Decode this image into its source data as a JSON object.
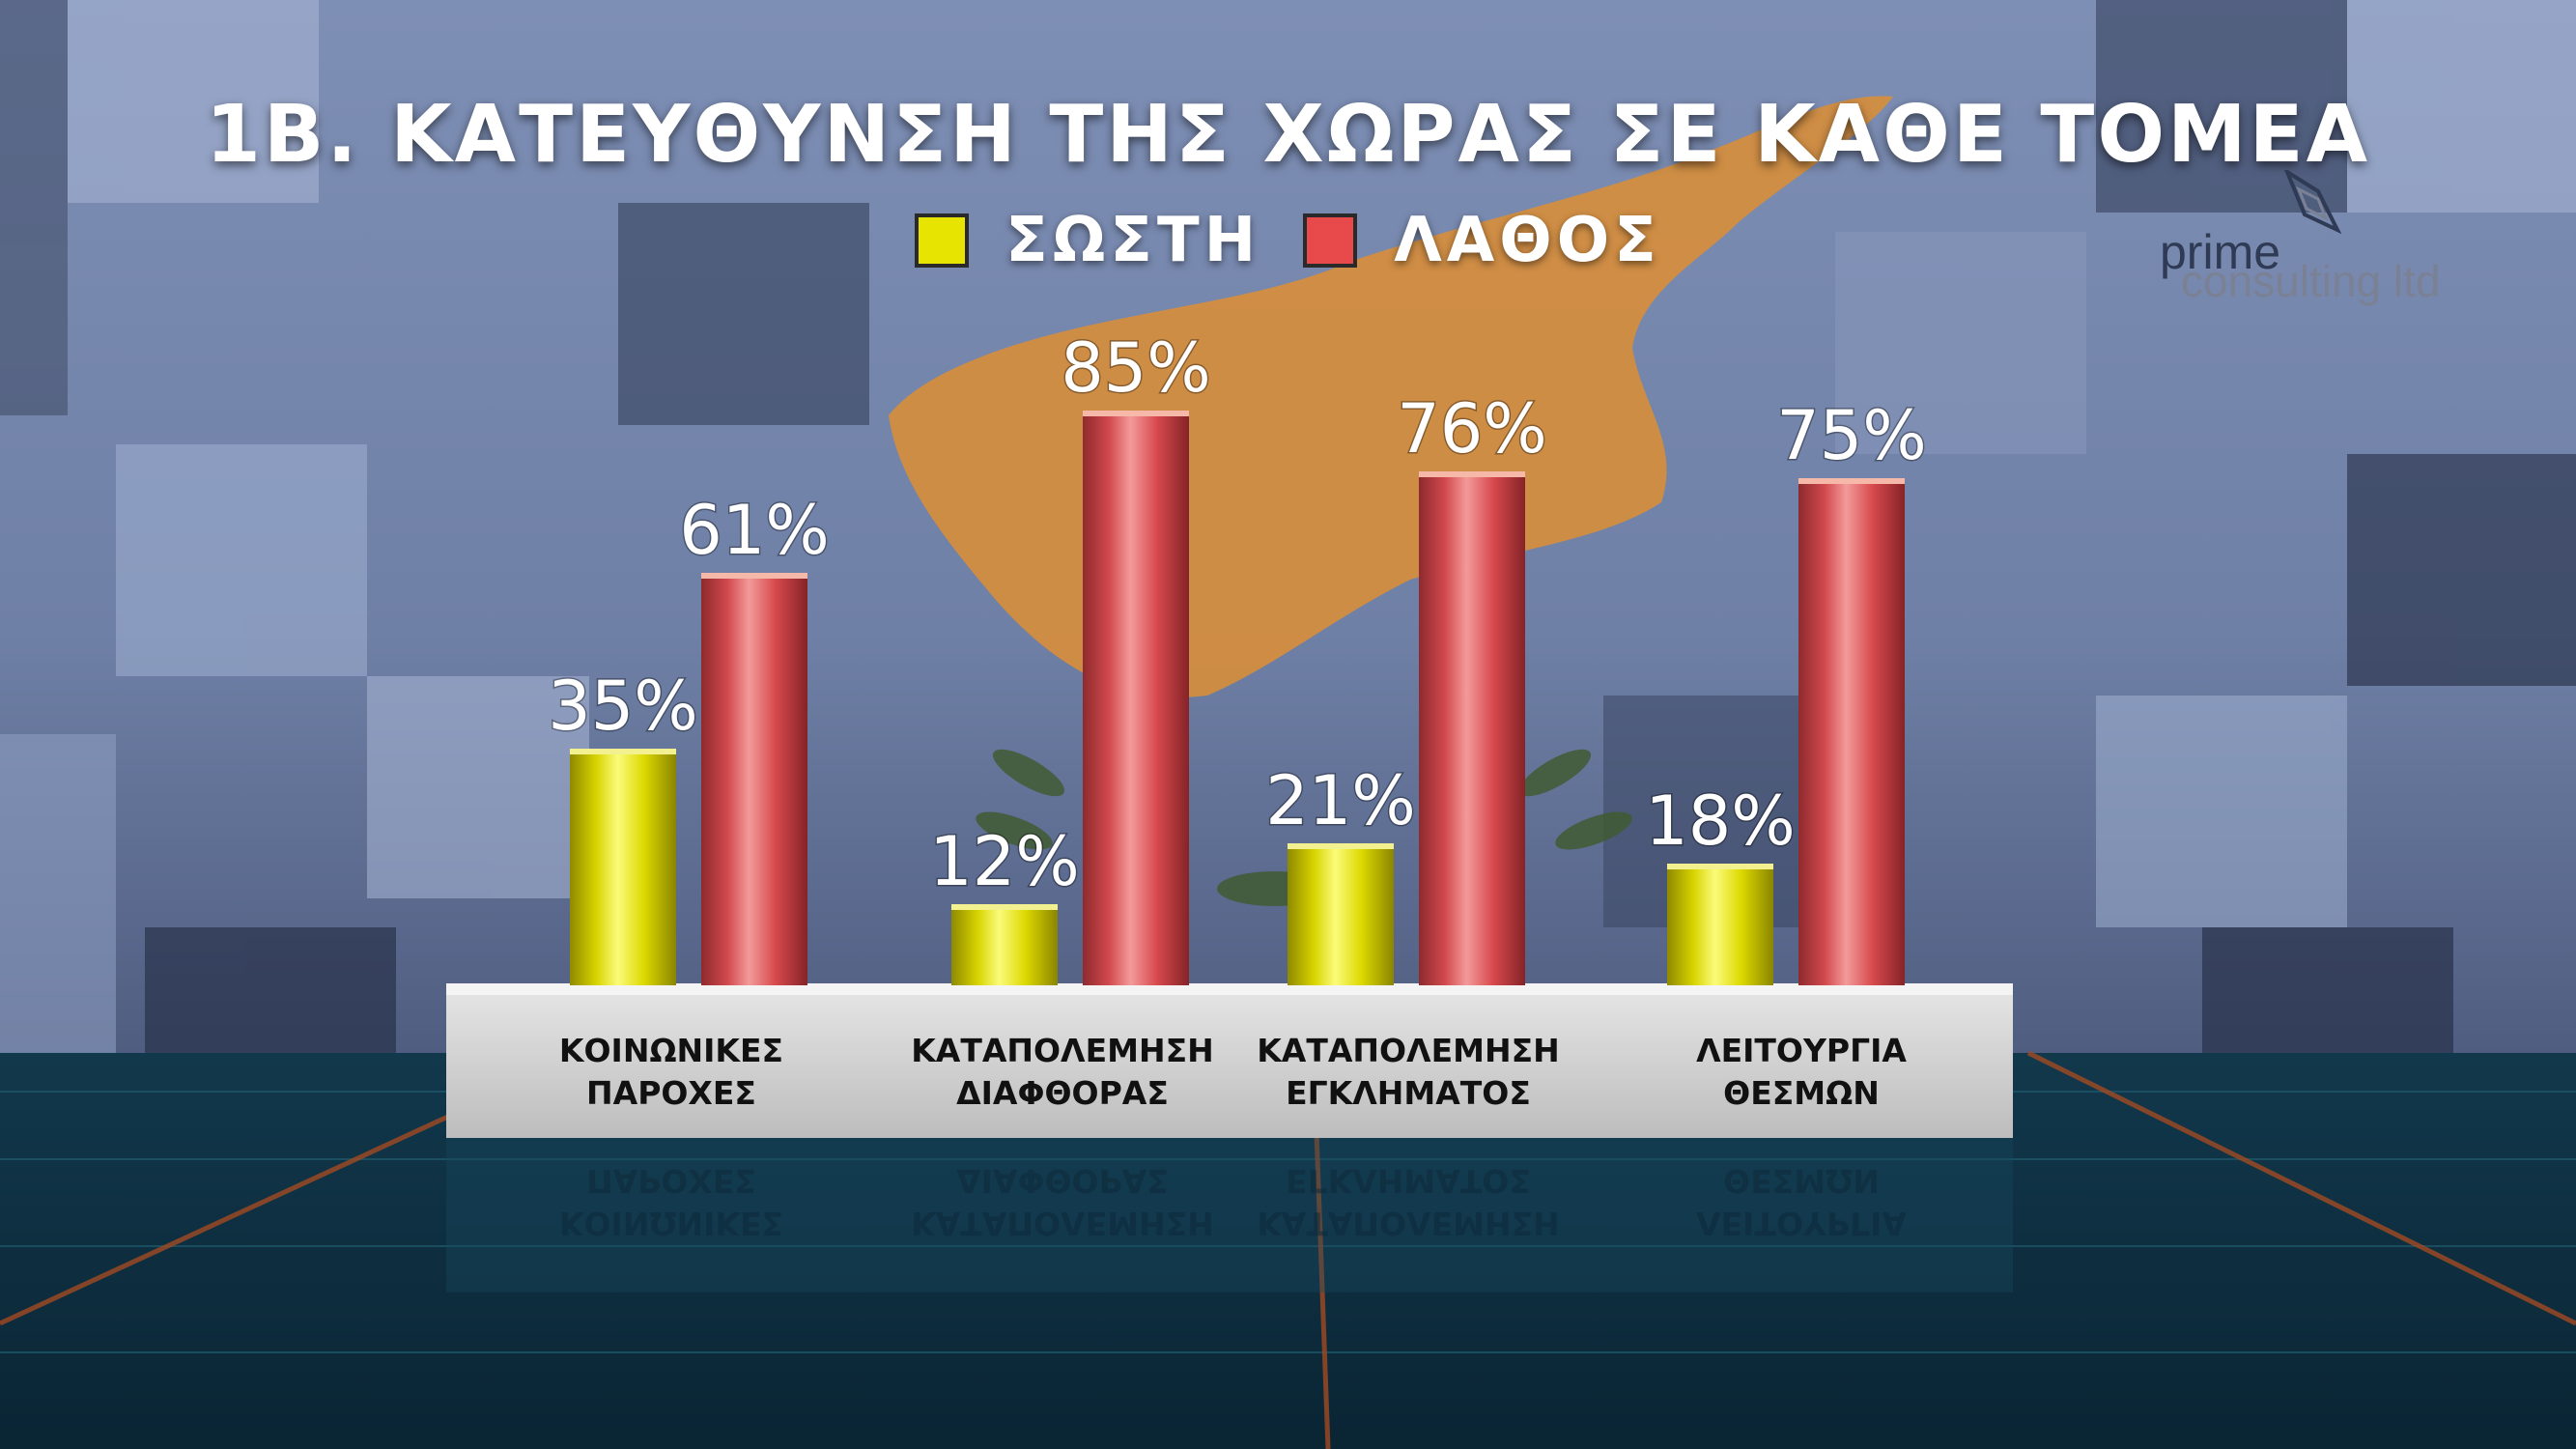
{
  "title": "1Β. ΚΑΤΕΥΘΥΝΣΗ ΤΗΣ ΧΩΡΑΣ ΣΕ ΚΑΘΕ ΤΟΜΕΑ",
  "legend": [
    {
      "label": "ΣΩΣΤΗ",
      "color": "#e6e400"
    },
    {
      "label": "ΛΑΘΟΣ",
      "color": "#e8494b"
    }
  ],
  "logo": {
    "line1": "prime",
    "line2": "consulting ltd"
  },
  "chart_data": {
    "type": "bar",
    "title": "1Β. ΚΑΤΕΥΘΥΝΣΗ ΤΗΣ ΧΩΡΑΣ ΣΕ ΚΑΘΕ ΤΟΜΕΑ",
    "categories": [
      [
        "ΚΟΙΝΩΝΙΚΕΣ",
        "ΠΑΡΟΧΕΣ"
      ],
      [
        "ΚΑΤΑΠΟΛΕΜΗΣΗ",
        "ΔΙΑΦΘΟΡΑΣ"
      ],
      [
        "ΚΑΤΑΠΟΛΕΜΗΣΗ",
        "ΕΓΚΛΗΜΑΤΟΣ"
      ],
      [
        "ΛΕΙΤΟΥΡΓΙΑ",
        "ΘΕΣΜΩΝ"
      ]
    ],
    "series": [
      {
        "name": "ΣΩΣΤΗ",
        "color": "#e6e400",
        "values": [
          35,
          12,
          21,
          18
        ]
      },
      {
        "name": "ΛΑΘΟΣ",
        "color": "#e8494b",
        "values": [
          61,
          85,
          76,
          75
        ]
      }
    ],
    "value_suffix": "%",
    "ylim": [
      0,
      100
    ],
    "legend": "top-center"
  }
}
